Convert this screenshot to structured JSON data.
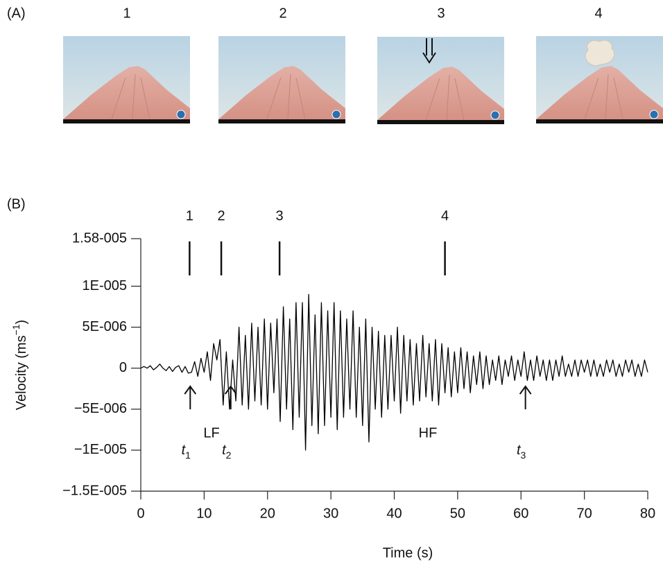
{
  "panel_a": {
    "label": "(A)",
    "photo_labels": [
      "1",
      "2",
      "3",
      "4"
    ]
  },
  "panel_b": {
    "label": "(B)"
  },
  "chart_data": {
    "type": "line",
    "xlabel": "Time (s)",
    "ylabel_parts": [
      "Velocity (ms",
      "−1",
      ")"
    ],
    "xlim": [
      0,
      80
    ],
    "xticks": [
      0,
      10,
      20,
      30,
      40,
      50,
      60,
      70,
      80
    ],
    "ylim": [
      -1.5e-05,
      1.58e-05
    ],
    "yticks": [
      {
        "value": 1.58e-05,
        "label": "1.58-005"
      },
      {
        "value": 1e-05,
        "label": "1E-005"
      },
      {
        "value": 5e-06,
        "label": "5E-006"
      },
      0,
      {
        "value": -5e-06,
        "label": "−5E-006"
      },
      {
        "value": -1e-05,
        "label": "−1E-005"
      },
      {
        "value": -1.5e-05,
        "label": "−1.5E-005"
      }
    ],
    "color": "#000000",
    "events": [
      {
        "label": "1",
        "x": 7.7
      },
      {
        "label": "2",
        "x": 12.7
      },
      {
        "label": "3",
        "x": 21.9
      },
      {
        "label": "4",
        "x": 48
      }
    ],
    "picks": [
      {
        "symbol": "t",
        "subscript": "1",
        "x": 7.8
      },
      {
        "symbol": "t",
        "subscript": "2",
        "x": 14.2
      },
      {
        "symbol": "t",
        "subscript": "3",
        "x": 60.7
      }
    ],
    "phase_labels": [
      "LF",
      "HF"
    ],
    "x": [
      0,
      0.5,
      1,
      1.5,
      2,
      2.5,
      3,
      3.5,
      4,
      4.5,
      5,
      5.5,
      6,
      6.5,
      7,
      7.5,
      8,
      8.5,
      9,
      9.5,
      10,
      10.5,
      11,
      11.5,
      12,
      12.5,
      13,
      13.5,
      14,
      14.5,
      15,
      15.5,
      16,
      16.5,
      17,
      17.5,
      18,
      18.5,
      19,
      19.5,
      20,
      20.5,
      21,
      21.5,
      22,
      22.5,
      23,
      23.5,
      24,
      24.5,
      25,
      25.5,
      26,
      26.5,
      27,
      27.5,
      28,
      28.5,
      29,
      29.5,
      30,
      30.5,
      31,
      31.5,
      32,
      32.5,
      33,
      33.5,
      34,
      34.5,
      35,
      35.5,
      36,
      36.5,
      37,
      37.5,
      38,
      38.5,
      39,
      39.5,
      40,
      40.5,
      41,
      41.5,
      42,
      42.5,
      43,
      43.5,
      44,
      44.5,
      45,
      45.5,
      46,
      46.5,
      47,
      47.5,
      48,
      48.5,
      49,
      49.5,
      50,
      50.5,
      51,
      51.5,
      52,
      52.5,
      53,
      53.5,
      54,
      54.5,
      55,
      55.5,
      56,
      56.5,
      57,
      57.5,
      58,
      58.5,
      59,
      59.5,
      60,
      60.5,
      61,
      61.5,
      62,
      62.5,
      63,
      63.5,
      64,
      64.5,
      65,
      65.5,
      66,
      66.5,
      67,
      67.5,
      68,
      68.5,
      69,
      69.5,
      70,
      70.5,
      71,
      71.5,
      72,
      72.5,
      73,
      73.5,
      74,
      74.5,
      75,
      75.5,
      76,
      76.5,
      77,
      77.5,
      78,
      78.5,
      79,
      79.5,
      80
    ],
    "values": [
      0,
      2e-07,
      0,
      3e-07,
      -2e-07,
      1e-07,
      5e-07,
      0,
      -3e-07,
      2e-07,
      -4e-07,
      1e-07,
      3e-07,
      -5e-07,
      2e-07,
      -6e-07,
      -5e-07,
      8e-07,
      -1e-06,
      1.2e-06,
      -5e-07,
      2e-06,
      -1.5e-06,
      3e-06,
      1e-06,
      3.5e-06,
      -4.5e-06,
      2e-06,
      -5e-06,
      1e-06,
      -4e-06,
      5e-06,
      -4.5e-06,
      4e-06,
      -5e-06,
      5.5e-06,
      -4e-06,
      5e-06,
      -4.5e-06,
      6e-06,
      -5e-06,
      5.5e-06,
      -3e-06,
      6e-06,
      -6.5e-06,
      7.5e-06,
      -5e-06,
      6e-06,
      -7.5e-06,
      8e-06,
      -6e-06,
      8e-06,
      -1e-05,
      9e-06,
      -7e-06,
      6.5e-06,
      -8e-06,
      8e-06,
      -7e-06,
      7e-06,
      -6e-06,
      8e-06,
      -7.5e-06,
      7e-06,
      -6e-06,
      6e-06,
      -5e-06,
      7e-06,
      -6e-06,
      5e-06,
      -7e-06,
      6e-06,
      -9e-06,
      5e-06,
      -5e-06,
      4.5e-06,
      -6e-06,
      4e-06,
      -5e-06,
      4e-06,
      -4e-06,
      5e-06,
      -5.5e-06,
      4e-06,
      -4e-06,
      3.5e-06,
      -4.5e-06,
      3e-06,
      -4e-06,
      4e-06,
      -3.5e-06,
      3e-06,
      -4e-06,
      3.5e-06,
      -4.5e-06,
      3e-06,
      -3e-06,
      2.5e-06,
      -3.5e-06,
      2e-06,
      -3e-06,
      2.5e-06,
      -2.5e-06,
      2e-06,
      -3e-06,
      1.5e-06,
      -2e-06,
      2e-06,
      -2.5e-06,
      1.5e-06,
      -2e-06,
      1e-06,
      -1.5e-06,
      1.5e-06,
      -2e-06,
      1e-06,
      -1e-06,
      1.5e-06,
      -1.5e-06,
      1e-06,
      -1e-06,
      2e-06,
      -1.5e-06,
      1e-06,
      -1.5e-06,
      1.5e-06,
      -1e-06,
      1e-06,
      -1.5e-06,
      1e-06,
      -1.5e-06,
      1e-06,
      -1e-06,
      1.5e-06,
      -1e-06,
      5e-07,
      -1e-06,
      1e-06,
      -1e-06,
      1e-06,
      -5e-07,
      1e-06,
      -1e-06,
      1e-06,
      -1e-06,
      5e-07,
      -1e-06,
      1e-06,
      -5e-07,
      1e-06,
      -1e-06,
      5e-07,
      -1e-06,
      1e-06,
      -5e-07,
      1e-06,
      -1e-06,
      5e-07,
      -1e-06,
      1e-06,
      -5e-07
    ]
  }
}
